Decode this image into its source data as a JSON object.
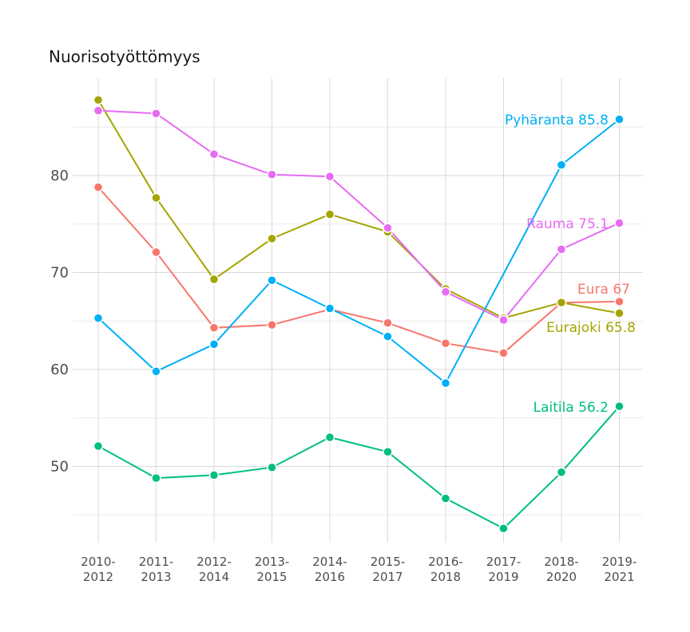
{
  "chart_data": {
    "type": "line",
    "title": "Nuorisotyöttömyys",
    "xlabel": "",
    "ylabel": "",
    "categories": [
      [
        "2010-",
        "2012"
      ],
      [
        "2011-",
        "2013"
      ],
      [
        "2012-",
        "2014"
      ],
      [
        "2013-",
        "2015"
      ],
      [
        "2014-",
        "2016"
      ],
      [
        "2015-",
        "2017"
      ],
      [
        "2016-",
        "2018"
      ],
      [
        "2017-",
        "2019"
      ],
      [
        "2018-",
        "2020"
      ],
      [
        "2019-",
        "2021"
      ]
    ],
    "yticks": [
      50,
      60,
      70,
      80
    ],
    "ylim": [
      42,
      89.5
    ],
    "grid": true,
    "legend": "none",
    "series": [
      {
        "name": "Eura",
        "color": "#F8766D",
        "label": "Eura 67",
        "values": [
          78.8,
          72.1,
          64.3,
          64.6,
          66.2,
          64.8,
          62.7,
          61.7,
          66.9,
          67.0
        ]
      },
      {
        "name": "Eurajoki",
        "color": "#A3A500",
        "label": "Eurajoki 65.8",
        "values": [
          87.8,
          77.7,
          69.3,
          73.5,
          76.0,
          74.2,
          68.3,
          65.3,
          66.9,
          65.8
        ]
      },
      {
        "name": "Laitila",
        "color": "#00BF7D",
        "label": "Laitila 56.2",
        "values": [
          52.1,
          48.8,
          49.1,
          49.9,
          53.0,
          51.5,
          46.7,
          43.6,
          49.4,
          56.2
        ]
      },
      {
        "name": "Pyhäranta",
        "color": "#00B0F6",
        "label": "Pyhäranta 85.8",
        "values": [
          65.3,
          59.8,
          62.6,
          69.2,
          66.3,
          63.4,
          58.6,
          null,
          81.1,
          85.8
        ]
      },
      {
        "name": "Rauma",
        "color": "#E76BF3",
        "label": "Rauma 75.1",
        "values": [
          86.7,
          86.4,
          82.2,
          80.1,
          79.9,
          74.6,
          68.0,
          65.1,
          72.4,
          75.1
        ]
      }
    ]
  }
}
